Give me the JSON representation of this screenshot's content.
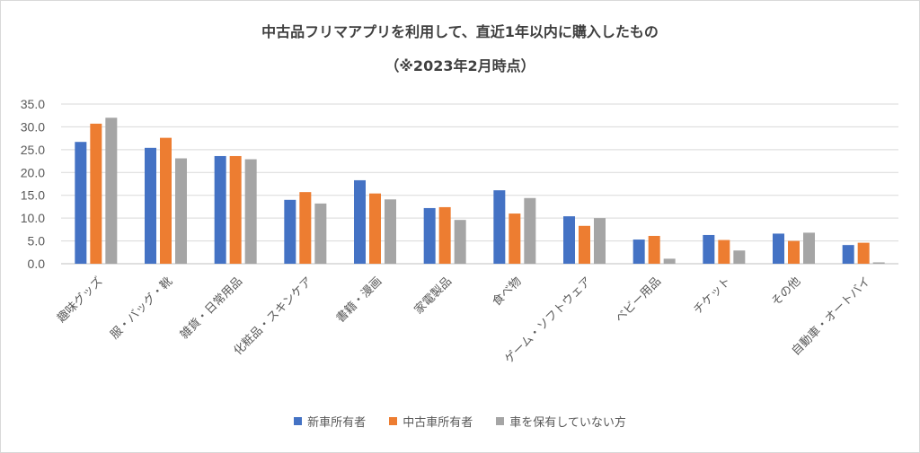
{
  "chart_data": {
    "type": "bar",
    "title_line1": "中古品フリマアプリを利用して、直近1年以内に購入したもの",
    "title_line2": "（※2023年2月時点）",
    "categories": [
      "趣味グッズ",
      "服・バッグ・靴",
      "雑貨・日常用品",
      "化粧品・スキンケア",
      "書籍・漫画",
      "家電製品",
      "食べ物",
      "ゲーム・ソフトウェア",
      "ベビー用品",
      "チケット",
      "その他",
      "自動車・オートバイ"
    ],
    "series": [
      {
        "name": "新車所有者",
        "color": "#4472c4",
        "values": [
          26.7,
          25.4,
          23.6,
          14.0,
          18.3,
          12.2,
          16.1,
          10.4,
          5.3,
          6.3,
          6.6,
          4.1
        ]
      },
      {
        "name": "中古車所有者",
        "color": "#ed7d31",
        "values": [
          30.7,
          27.6,
          23.6,
          15.7,
          15.4,
          12.4,
          11.0,
          8.3,
          6.1,
          5.2,
          5.0,
          4.6
        ]
      },
      {
        "name": "車を保有していない方",
        "color": "#a5a5a5",
        "values": [
          32.0,
          23.1,
          22.9,
          13.2,
          14.1,
          9.6,
          14.4,
          10.0,
          1.1,
          2.9,
          6.8,
          0.3
        ]
      }
    ],
    "ylim": [
      0,
      35
    ],
    "yticks": [
      "0.0",
      "5.0",
      "10.0",
      "15.0",
      "20.0",
      "25.0",
      "30.0",
      "35.0"
    ],
    "grid": true,
    "legend_position": "bottom"
  }
}
